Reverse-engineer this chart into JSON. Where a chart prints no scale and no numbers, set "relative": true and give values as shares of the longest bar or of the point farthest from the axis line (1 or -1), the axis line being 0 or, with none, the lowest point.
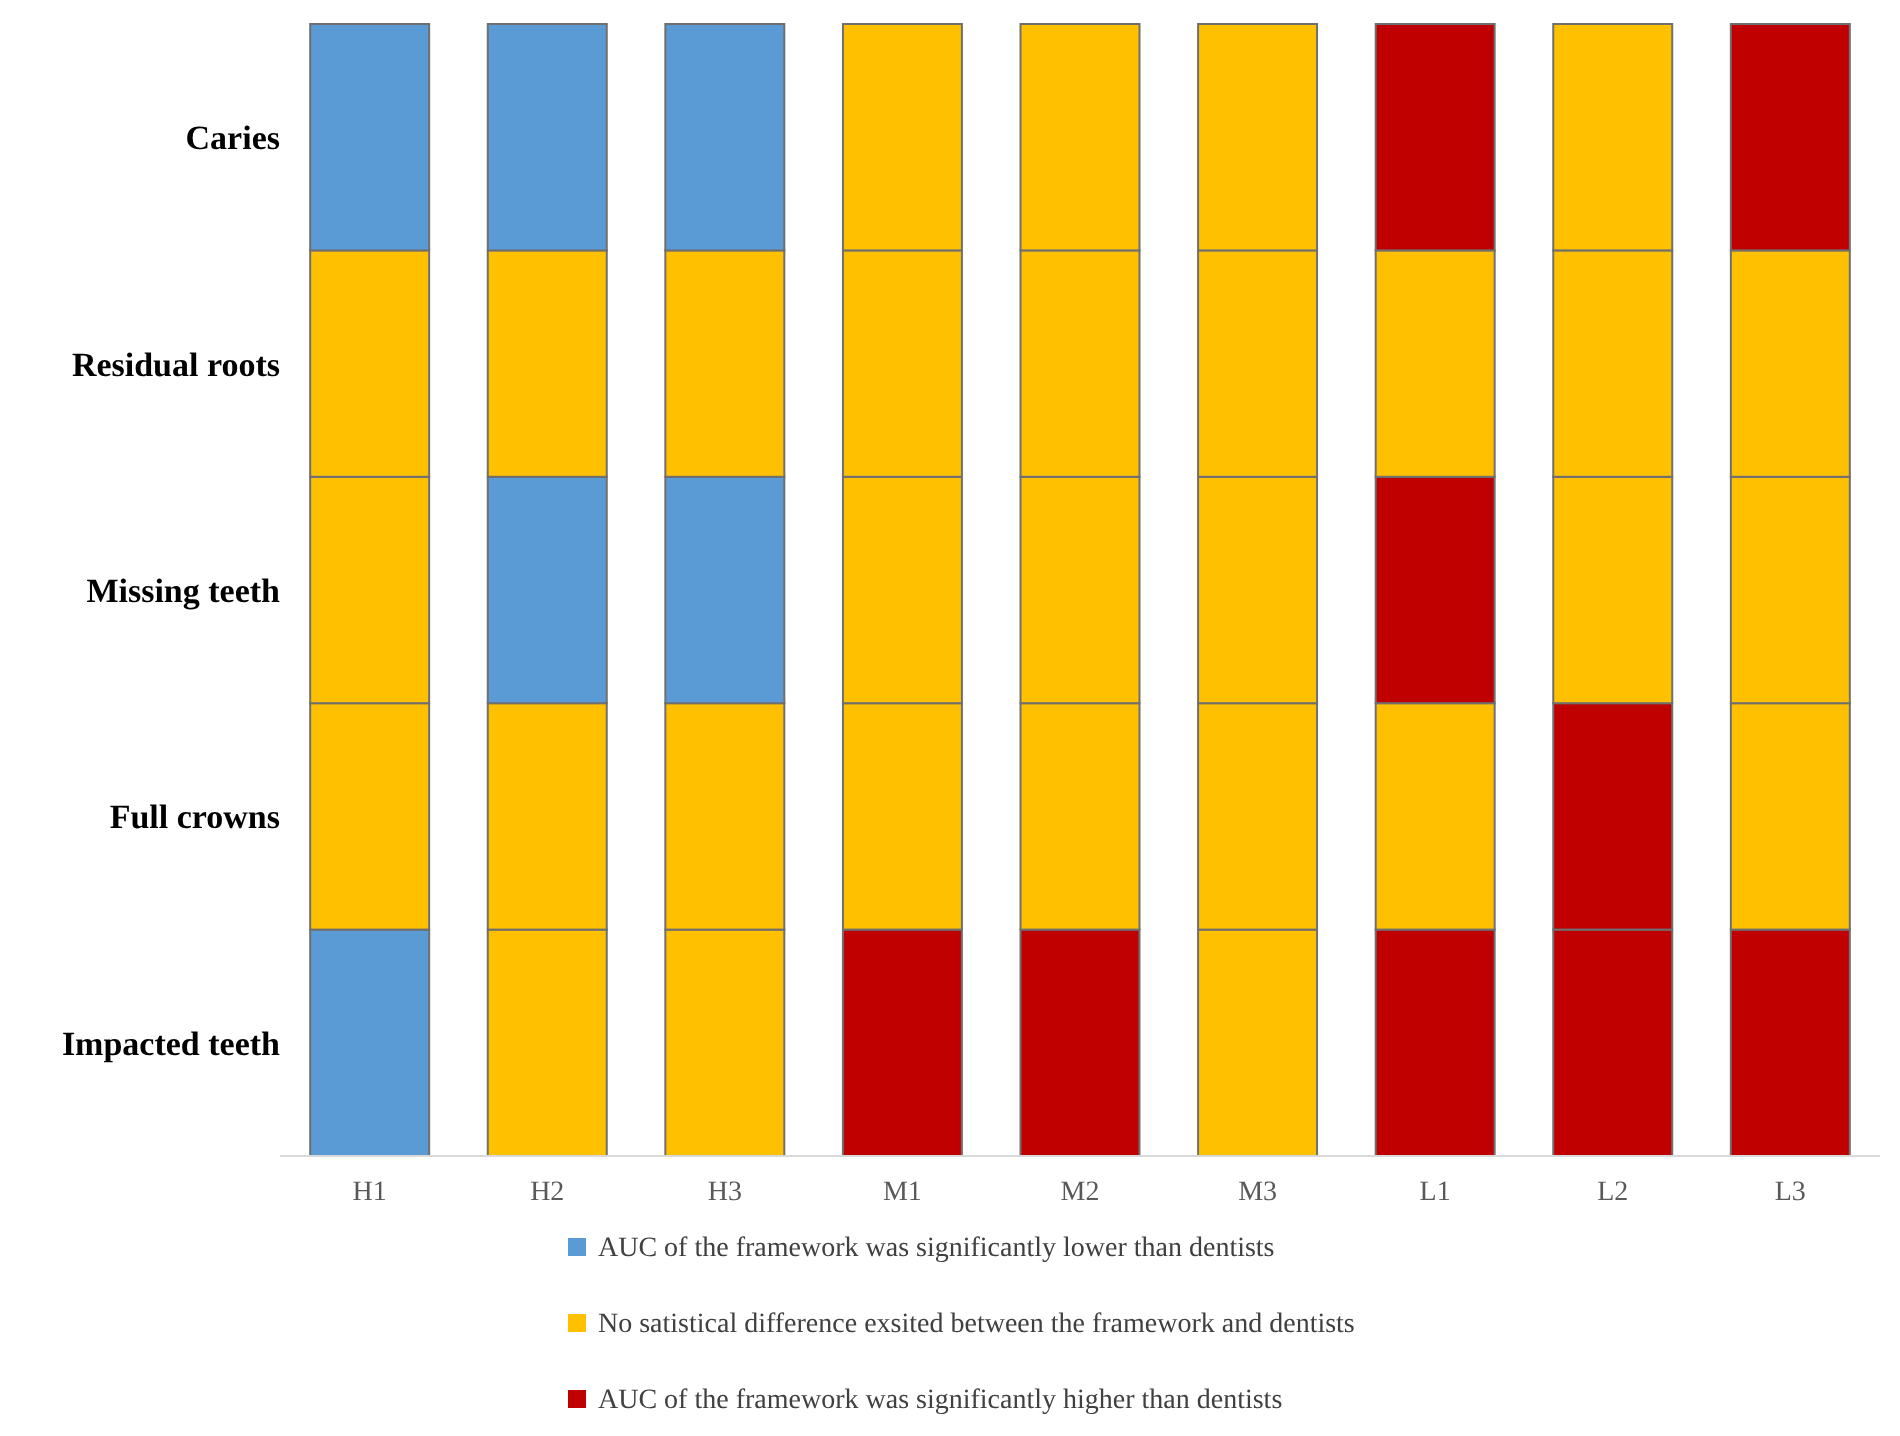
{
  "chart_data": {
    "type": "bar",
    "stacked": true,
    "relative": true,
    "categories": [
      "H1",
      "H2",
      "H3",
      "M1",
      "M2",
      "M3",
      "L1",
      "L2",
      "L3"
    ],
    "series": [
      {
        "name": "Impacted teeth",
        "values": [
          0.2,
          0.2,
          0.2,
          0.2,
          0.2,
          0.2,
          0.2,
          0.2,
          0.2
        ],
        "colors": [
          "#5b9bd5",
          "#ffc000",
          "#ffc000",
          "#c00000",
          "#c00000",
          "#ffc000",
          "#c00000",
          "#c00000",
          "#c00000"
        ]
      },
      {
        "name": "Full crowns",
        "values": [
          0.2,
          0.2,
          0.2,
          0.2,
          0.2,
          0.2,
          0.2,
          0.2,
          0.2
        ],
        "colors": [
          "#ffc000",
          "#ffc000",
          "#ffc000",
          "#ffc000",
          "#ffc000",
          "#ffc000",
          "#ffc000",
          "#c00000",
          "#ffc000"
        ]
      },
      {
        "name": "Missing teeth",
        "values": [
          0.2,
          0.2,
          0.2,
          0.2,
          0.2,
          0.2,
          0.2,
          0.2,
          0.2
        ],
        "colors": [
          "#ffc000",
          "#5b9bd5",
          "#5b9bd5",
          "#ffc000",
          "#ffc000",
          "#ffc000",
          "#c00000",
          "#ffc000",
          "#ffc000"
        ]
      },
      {
        "name": "Residual roots",
        "values": [
          0.2,
          0.2,
          0.2,
          0.2,
          0.2,
          0.2,
          0.2,
          0.2,
          0.2
        ],
        "colors": [
          "#ffc000",
          "#ffc000",
          "#ffc000",
          "#ffc000",
          "#ffc000",
          "#ffc000",
          "#ffc000",
          "#ffc000",
          "#ffc000"
        ]
      },
      {
        "name": "Caries",
        "values": [
          0.2,
          0.2,
          0.2,
          0.2,
          0.2,
          0.2,
          0.2,
          0.2,
          0.2
        ],
        "colors": [
          "#5b9bd5",
          "#5b9bd5",
          "#5b9bd5",
          "#ffc000",
          "#ffc000",
          "#ffc000",
          "#c00000",
          "#ffc000",
          "#c00000"
        ]
      }
    ],
    "annotations": [
      "AUC of the framework was significantly lower than dentists",
      "No satistical difference exsited between the framework and dentists",
      "AUC of the framework was significantly higher than dentists"
    ],
    "colors": [
      "#5b9bd5",
      "#ffc000",
      "#c00000"
    ]
  }
}
